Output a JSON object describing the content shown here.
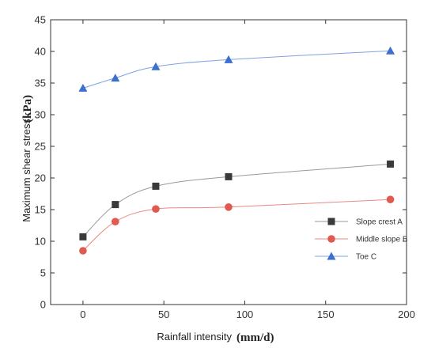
{
  "chart_data": {
    "type": "line",
    "title": "",
    "xlabel": "Rainfall intensity",
    "xlabel_unit": "(mm/d)",
    "ylabel": "Maximum shear stress",
    "ylabel_unit": "(kPa)",
    "xlim": [
      -20,
      200
    ],
    "ylim": [
      0,
      45
    ],
    "xticks": [
      0,
      50,
      100,
      150,
      200
    ],
    "yticks": [
      0,
      5,
      10,
      15,
      20,
      25,
      30,
      35,
      40,
      45
    ],
    "x": [
      0,
      20,
      45,
      90,
      190
    ],
    "grid": false,
    "legend_position": "center-right",
    "series": [
      {
        "name": "Slope crest A",
        "marker": "square",
        "color": "#3a3a3a",
        "line_color": "#9a9a9a",
        "values": [
          10.7,
          15.8,
          18.7,
          20.2,
          22.2
        ]
      },
      {
        "name": "Middle slope B",
        "marker": "circle",
        "color": "#e05a50",
        "line_color": "#e88a84",
        "values": [
          8.5,
          13.1,
          15.1,
          15.4,
          16.6
        ]
      },
      {
        "name": "Toe C",
        "marker": "triangle",
        "color": "#3b6fd0",
        "line_color": "#7fa3e0",
        "values": [
          34.2,
          35.8,
          37.6,
          38.7,
          40.1
        ]
      }
    ]
  }
}
